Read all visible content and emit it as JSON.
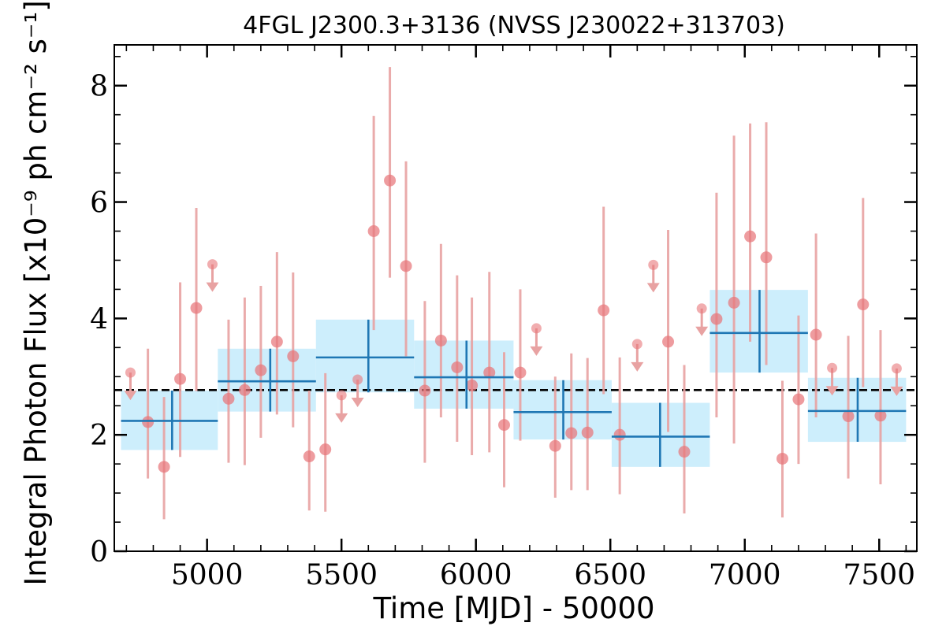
{
  "chart_data": {
    "type": "scatter",
    "title": "4FGL J2300.3+3136 (NVSS J230022+313703)",
    "xlabel": "Time [MJD] - 50000",
    "ylabel": "Integral Photon Flux [x10⁻⁹ ph cm⁻² s⁻¹]",
    "xlim": [
      4655,
      7640
    ],
    "ylim": [
      0,
      8.7
    ],
    "xticks": [
      5000,
      5500,
      6000,
      6500,
      7000,
      7500
    ],
    "yticks": [
      0,
      2,
      4,
      6,
      8
    ],
    "mean_flux": 2.77,
    "colors": {
      "points": "#e8767a",
      "errorbars": "#e8a2a2",
      "bins_fill": "#cdeefc",
      "bins_line": "#1f77b4",
      "mean_line": "#000000"
    },
    "series": [
      {
        "kind": "measurements",
        "points": [
          {
            "x": 4780,
            "y": 2.22,
            "ylo": 1.25,
            "yhi": 3.48
          },
          {
            "x": 4840,
            "y": 1.45,
            "ylo": 0.55,
            "yhi": 2.65
          },
          {
            "x": 4900,
            "y": 2.96,
            "ylo": 1.62,
            "yhi": 4.62
          },
          {
            "x": 4960,
            "y": 4.18,
            "ylo": 2.75,
            "yhi": 5.9
          },
          {
            "x": 5080,
            "y": 2.62,
            "ylo": 1.52,
            "yhi": 3.98
          },
          {
            "x": 5140,
            "y": 2.77,
            "ylo": 1.48,
            "yhi": 4.36
          },
          {
            "x": 5200,
            "y": 3.11,
            "ylo": 1.95,
            "yhi": 4.56
          },
          {
            "x": 5260,
            "y": 3.6,
            "ylo": 2.35,
            "yhi": 5.14
          },
          {
            "x": 5320,
            "y": 3.35,
            "ylo": 2.13,
            "yhi": 4.79
          },
          {
            "x": 5380,
            "y": 1.63,
            "ylo": 0.7,
            "yhi": 2.76
          },
          {
            "x": 5440,
            "y": 1.75,
            "ylo": 0.68,
            "yhi": 3.06
          },
          {
            "x": 5620,
            "y": 5.5,
            "ylo": 3.8,
            "yhi": 7.48
          },
          {
            "x": 5680,
            "y": 6.37,
            "ylo": 4.7,
            "yhi": 8.32
          },
          {
            "x": 5740,
            "y": 4.9,
            "ylo": 3.35,
            "yhi": 6.7
          },
          {
            "x": 5810,
            "y": 2.76,
            "ylo": 1.52,
            "yhi": 4.3
          },
          {
            "x": 5870,
            "y": 3.62,
            "ylo": 2.3,
            "yhi": 5.28
          },
          {
            "x": 5930,
            "y": 3.16,
            "ylo": 1.88,
            "yhi": 4.74
          },
          {
            "x": 5985,
            "y": 2.85,
            "ylo": 1.65,
            "yhi": 4.36
          },
          {
            "x": 6050,
            "y": 3.07,
            "ylo": 1.7,
            "yhi": 4.8
          },
          {
            "x": 6105,
            "y": 2.17,
            "ylo": 1.1,
            "yhi": 3.42
          },
          {
            "x": 6165,
            "y": 3.07,
            "ylo": 1.9,
            "yhi": 4.5
          },
          {
            "x": 6295,
            "y": 1.81,
            "ylo": 0.92,
            "yhi": 3.0
          },
          {
            "x": 6355,
            "y": 2.03,
            "ylo": 1.05,
            "yhi": 3.4
          },
          {
            "x": 6415,
            "y": 2.04,
            "ylo": 1.05,
            "yhi": 3.32
          },
          {
            "x": 6475,
            "y": 4.14,
            "ylo": 2.7,
            "yhi": 5.92
          },
          {
            "x": 6535,
            "y": 2.0,
            "ylo": 0.98,
            "yhi": 3.33
          },
          {
            "x": 6715,
            "y": 3.6,
            "ylo": 2.05,
            "yhi": 5.52
          },
          {
            "x": 6775,
            "y": 1.71,
            "ylo": 0.65,
            "yhi": 3.2
          },
          {
            "x": 6895,
            "y": 3.99,
            "ylo": 2.3,
            "yhi": 6.16
          },
          {
            "x": 6960,
            "y": 4.27,
            "ylo": 1.85,
            "yhi": 7.14
          },
          {
            "x": 7020,
            "y": 5.41,
            "ylo": 3.6,
            "yhi": 7.35
          },
          {
            "x": 7080,
            "y": 5.05,
            "ylo": 3.2,
            "yhi": 7.37
          },
          {
            "x": 7140,
            "y": 1.59,
            "ylo": 0.58,
            "yhi": 2.93
          },
          {
            "x": 7200,
            "y": 2.61,
            "ylo": 1.5,
            "yhi": 4.05
          },
          {
            "x": 7265,
            "y": 3.72,
            "ylo": 2.3,
            "yhi": 5.46
          },
          {
            "x": 7385,
            "y": 2.32,
            "ylo": 1.25,
            "yhi": 3.7
          },
          {
            "x": 7440,
            "y": 4.24,
            "ylo": 2.82,
            "yhi": 6.07
          },
          {
            "x": 7505,
            "y": 2.33,
            "ylo": 1.15,
            "yhi": 3.8
          }
        ]
      },
      {
        "kind": "upper_limits",
        "points": [
          {
            "x": 4715,
            "y": 3.07
          },
          {
            "x": 5020,
            "y": 4.93
          },
          {
            "x": 5500,
            "y": 2.68
          },
          {
            "x": 5560,
            "y": 2.95
          },
          {
            "x": 6225,
            "y": 3.83
          },
          {
            "x": 6600,
            "y": 3.56
          },
          {
            "x": 6660,
            "y": 4.92
          },
          {
            "x": 6840,
            "y": 4.17
          },
          {
            "x": 7325,
            "y": 3.15
          },
          {
            "x": 7565,
            "y": 3.14
          }
        ]
      },
      {
        "kind": "binned",
        "bins": [
          {
            "x0": 4680,
            "x1": 5040,
            "xc": 4870,
            "y": 2.24,
            "ylo": 1.74,
            "yhi": 2.76
          },
          {
            "x0": 5040,
            "x1": 5405,
            "xc": 5235,
            "y": 2.92,
            "ylo": 2.4,
            "yhi": 3.48
          },
          {
            "x0": 5405,
            "x1": 5770,
            "xc": 5600,
            "y": 3.33,
            "ylo": 2.73,
            "yhi": 3.98
          },
          {
            "x0": 5770,
            "x1": 6140,
            "xc": 5965,
            "y": 2.99,
            "ylo": 2.45,
            "yhi": 3.62
          },
          {
            "x0": 6140,
            "x1": 6505,
            "xc": 6325,
            "y": 2.39,
            "ylo": 1.92,
            "yhi": 2.94
          },
          {
            "x0": 6505,
            "x1": 6870,
            "xc": 6685,
            "y": 1.97,
            "ylo": 1.45,
            "yhi": 2.55
          },
          {
            "x0": 6870,
            "x1": 7235,
            "xc": 7055,
            "y": 3.75,
            "ylo": 3.07,
            "yhi": 4.49
          },
          {
            "x0": 7235,
            "x1": 7600,
            "xc": 7420,
            "y": 2.41,
            "ylo": 1.88,
            "yhi": 2.98
          }
        ]
      }
    ]
  }
}
